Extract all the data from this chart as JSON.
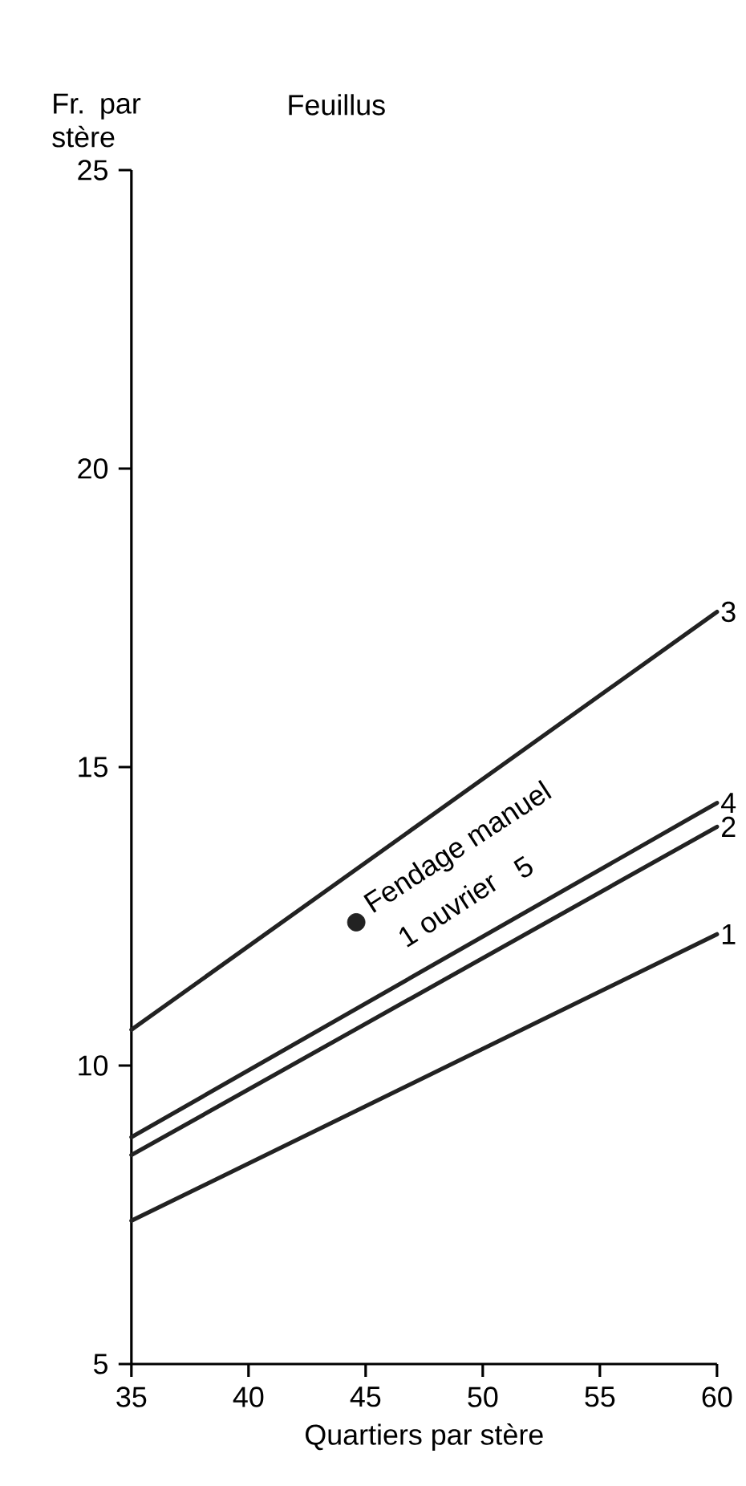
{
  "chart_data": {
    "type": "line",
    "title": "Feuillus",
    "xlabel": "Quartiers par stère",
    "ylabel": "Fr. par stère",
    "x": [
      35,
      60
    ],
    "xlim": [
      35,
      60
    ],
    "ylim": [
      5,
      25
    ],
    "xticks": [
      35,
      40,
      45,
      50,
      55,
      60
    ],
    "yticks": [
      5,
      10,
      15,
      20,
      25
    ],
    "grid": false,
    "line_style": "solid",
    "series": [
      {
        "name": "1",
        "color": "#222222",
        "values": [
          7.4,
          12.2
        ]
      },
      {
        "name": "2",
        "color": "#222222",
        "values": [
          8.5,
          14.0
        ]
      },
      {
        "name": "3",
        "color": "#222222",
        "values": [
          10.6,
          17.6
        ]
      },
      {
        "name": "4",
        "color": "#222222",
        "values": [
          8.8,
          14.4
        ]
      },
      {
        "type": "scatter",
        "color": "#222222",
        "x": [
          44.6
        ],
        "values": [
          12.4
        ]
      }
    ],
    "annotations": [
      {
        "text": "Fendage manuel",
        "x": 44.6,
        "y": 12.4
      },
      {
        "text": "1 ouvrier",
        "x": 44.6,
        "y": 12.4
      },
      "5"
    ]
  }
}
